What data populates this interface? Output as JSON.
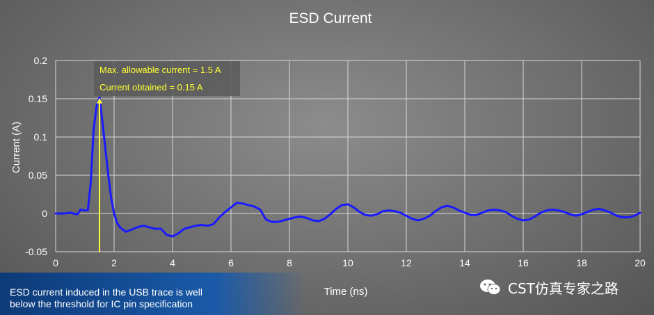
{
  "chart_data": {
    "type": "line",
    "title": "ESD Current",
    "xlabel": "Time (ns)",
    "ylabel": "Current (A)",
    "xlim": [
      0,
      20
    ],
    "ylim": [
      -0.05,
      0.2
    ],
    "xticks": [
      "0",
      "2",
      "4",
      "6",
      "8",
      "10",
      "12",
      "14",
      "16",
      "18",
      "20"
    ],
    "yticks": [
      "-0.05",
      "0",
      "0.05",
      "0.1",
      "0.15",
      "0.2"
    ],
    "grid": true,
    "line_color": "#1a1aff",
    "series": [
      {
        "x": [
          0,
          0.3,
          0.5,
          0.6,
          0.75,
          0.85,
          1.0,
          1.1,
          1.2,
          1.3,
          1.4,
          1.5,
          1.6,
          1.7,
          1.8,
          1.9,
          2.0,
          2.1,
          2.2,
          2.4,
          2.6,
          2.8,
          3.0,
          3.2,
          3.4,
          3.6,
          3.8,
          4.0,
          4.2,
          4.4,
          4.6,
          4.8,
          5.0,
          5.2,
          5.4,
          5.6,
          5.8,
          6.0,
          6.2,
          6.4,
          6.6,
          6.8,
          7.0,
          7.2,
          7.4,
          7.6,
          7.8,
          8.0,
          8.2,
          8.4,
          8.6,
          8.8,
          9.0,
          9.2,
          9.4,
          9.6,
          9.8,
          10.0,
          10.2,
          10.4,
          10.6,
          10.8,
          11.0,
          11.2,
          11.4,
          11.6,
          11.8,
          12.0,
          12.2,
          12.4,
          12.6,
          12.8,
          13.0,
          13.2,
          13.4,
          13.6,
          13.8,
          14.0,
          14.2,
          14.4,
          14.6,
          14.8,
          15.0,
          15.2,
          15.4,
          15.6,
          15.8,
          16.0,
          16.2,
          16.4,
          16.6,
          16.8,
          17.0,
          17.2,
          17.4,
          17.6,
          17.8,
          18.0,
          18.2,
          18.4,
          18.6,
          18.8,
          19.0,
          19.2,
          19.4,
          19.6,
          19.8,
          20.0
        ],
        "y": [
          0,
          0,
          0.001,
          0,
          -0.001,
          0.005,
          0.004,
          0.004,
          0.04,
          0.11,
          0.14,
          0.152,
          0.12,
          0.085,
          0.05,
          0.02,
          0,
          -0.012,
          -0.018,
          -0.024,
          -0.021,
          -0.018,
          -0.016,
          -0.018,
          -0.02,
          -0.02,
          -0.028,
          -0.03,
          -0.026,
          -0.02,
          -0.018,
          -0.016,
          -0.015,
          -0.016,
          -0.014,
          -0.005,
          0.002,
          0.008,
          0.014,
          0.013,
          0.011,
          0.009,
          0.005,
          -0.008,
          -0.011,
          -0.011,
          -0.009,
          -0.007,
          -0.005,
          -0.004,
          -0.006,
          -0.009,
          -0.01,
          -0.007,
          -0.001,
          0.006,
          0.011,
          0.012,
          0.008,
          0.002,
          -0.002,
          -0.003,
          -0.001,
          0.003,
          0.004,
          0.003,
          0.001,
          -0.003,
          -0.007,
          -0.009,
          -0.007,
          -0.003,
          0.003,
          0.008,
          0.01,
          0.008,
          0.004,
          0.001,
          -0.002,
          -0.002,
          0.001,
          0.004,
          0.005,
          0.004,
          0.002,
          -0.003,
          -0.007,
          -0.009,
          -0.008,
          -0.004,
          0.001,
          0.004,
          0.005,
          0.004,
          0.002,
          -0.001,
          -0.003,
          -0.001,
          0.002,
          0.005,
          0.006,
          0.004,
          0.001,
          -0.003,
          -0.005,
          -0.005,
          -0.003,
          0.001
        ]
      }
    ],
    "annotation": {
      "x": 1.5,
      "lines": [
        "Max. allowable current = 1.5 A",
        "Current obtained = 0.15 A"
      ],
      "color": "#ffff33"
    }
  },
  "caption": {
    "line1": "ESD current induced in the USB trace is well",
    "line2": "below the threshold for IC pin specification"
  },
  "brand": {
    "text": "CST仿真专家之路",
    "icon": "wechat-icon"
  }
}
